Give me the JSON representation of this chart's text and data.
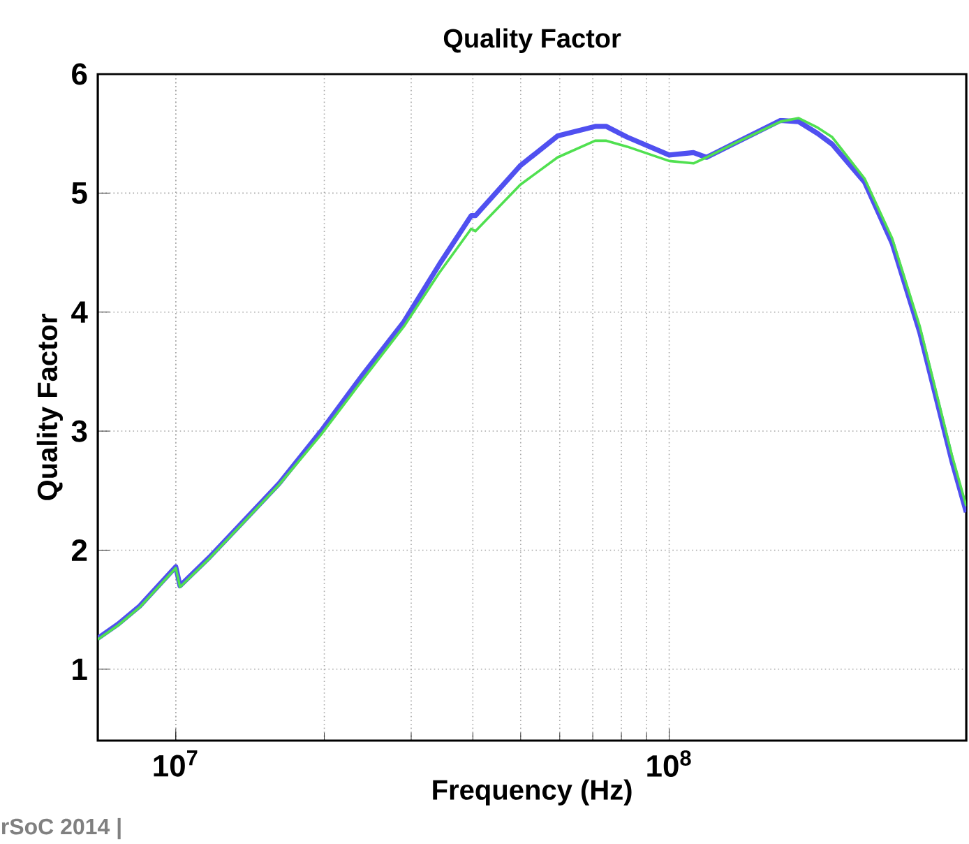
{
  "chart_data": {
    "type": "line",
    "title": "Quality Factor",
    "xlabel": "Frequency (Hz)",
    "ylabel": "Quality Factor",
    "log": "x",
    "grid": true,
    "xlim": [
      6950000,
      400000000
    ],
    "ylim": [
      0.4,
      6
    ],
    "xticks": [
      {
        "value": 10000000,
        "label": "10$^{7}$"
      },
      {
        "value": 100000000,
        "label": "10$^{8}$"
      }
    ],
    "yticks": [
      1,
      2,
      3,
      4,
      5,
      6
    ],
    "x": [
      6950000,
      7650000,
      8450000,
      10000000,
      10200000,
      11700000,
      13700000,
      16200000,
      19700000,
      23900000,
      29000000,
      34200000,
      39700000,
      40500000,
      49900000,
      59400000,
      70800000,
      74600000,
      82200000,
      100000000,
      112000000,
      119000000,
      136000000,
      168000000,
      183000000,
      200000000,
      214000000,
      249000000,
      283000000,
      322000000,
      374000000,
      400000000
    ],
    "series": [
      {
        "color": "#5050f0",
        "values": [
          1.26,
          1.38,
          1.53,
          1.86,
          1.7,
          1.94,
          2.24,
          2.56,
          3.0,
          3.47,
          3.92,
          4.4,
          4.81,
          4.81,
          5.23,
          5.48,
          5.56,
          5.56,
          5.47,
          5.32,
          5.34,
          5.3,
          5.42,
          5.61,
          5.6,
          5.5,
          5.41,
          5.09,
          4.58,
          3.83,
          2.75,
          2.32
        ]
      },
      {
        "color": "#50e050",
        "values": [
          1.25,
          1.37,
          1.52,
          1.85,
          1.69,
          1.93,
          2.23,
          2.55,
          2.97,
          3.43,
          3.88,
          4.33,
          4.7,
          4.68,
          5.07,
          5.3,
          5.44,
          5.44,
          5.39,
          5.27,
          5.25,
          5.3,
          5.42,
          5.6,
          5.63,
          5.55,
          5.47,
          5.12,
          4.62,
          3.88,
          2.8,
          2.37
        ]
      }
    ],
    "annotations": [
      "rSoC 2014 |"
    ]
  }
}
